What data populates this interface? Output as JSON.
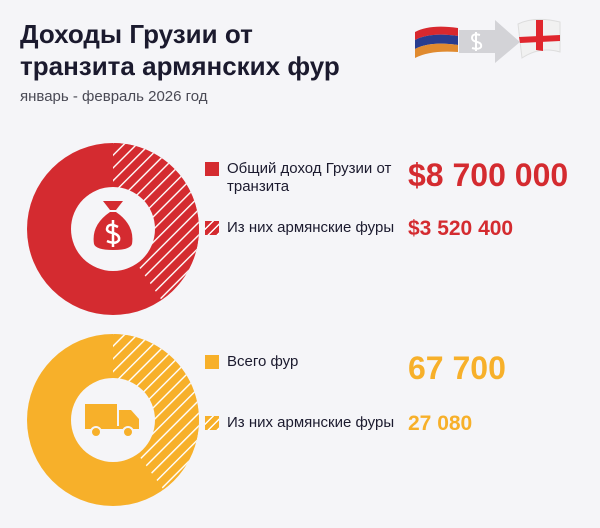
{
  "header": {
    "title_line1": "Доходы Грузии от",
    "title_line2": "транзита армянских фур",
    "subtitle": "январь - февраль 2026 год",
    "icons": [
      "armenia-flag",
      "arrow-dollar",
      "georgia-flag"
    ]
  },
  "chart_data": [
    {
      "type": "pie",
      "variant": "donut",
      "center_icon": "money-bag-icon",
      "color": "#d42b30",
      "categories": [
        "Общий доход Грузии от транзита",
        "Из них армянские фуры"
      ],
      "values": [
        8700000,
        3520400
      ],
      "value_labels": [
        "$8 700 000",
        "$3 520 400"
      ]
    },
    {
      "type": "pie",
      "variant": "donut",
      "center_icon": "truck-icon",
      "color": "#f7b02a",
      "categories": [
        "Всего фур",
        "Из них армянские фуры"
      ],
      "values": [
        67700,
        27080
      ],
      "value_labels": [
        "67 700",
        "27 080"
      ]
    }
  ]
}
